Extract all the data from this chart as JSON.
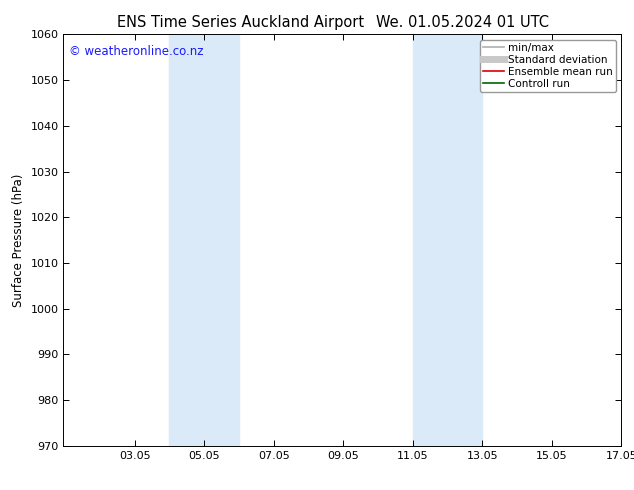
{
  "title_left": "ENS Time Series Auckland Airport",
  "title_right": "We. 01.05.2024 01 UTC",
  "ylabel": "Surface Pressure (hPa)",
  "ylim": [
    970,
    1060
  ],
  "yticks": [
    970,
    980,
    990,
    1000,
    1010,
    1020,
    1030,
    1040,
    1050,
    1060
  ],
  "xlim_start": 1.0,
  "xlim_end": 17.05,
  "xtick_positions": [
    3.05,
    5.05,
    7.05,
    9.05,
    11.05,
    13.05,
    15.05,
    17.05
  ],
  "xtick_labels": [
    "03.05",
    "05.05",
    "07.05",
    "09.05",
    "11.05",
    "13.05",
    "15.05",
    "17.05"
  ],
  "shade_bands": [
    {
      "x_start": 4.05,
      "x_end": 6.05
    },
    {
      "x_start": 11.05,
      "x_end": 13.05
    }
  ],
  "shade_color": "#daeaf8",
  "watermark_text": "© weatheronline.co.nz",
  "watermark_color": "#1a1aff",
  "legend_items": [
    {
      "label": "min/max",
      "color": "#b0b0b0",
      "linewidth": 1.2
    },
    {
      "label": "Standard deviation",
      "color": "#c8c8c8",
      "linewidth": 5
    },
    {
      "label": "Ensemble mean run",
      "color": "#dd0000",
      "linewidth": 1.2
    },
    {
      "label": "Controll run",
      "color": "#006600",
      "linewidth": 1.2
    }
  ],
  "bg_color": "#ffffff",
  "title_fontsize": 10.5,
  "axis_label_fontsize": 8.5,
  "tick_fontsize": 8,
  "legend_fontsize": 7.5,
  "watermark_fontsize": 8.5
}
